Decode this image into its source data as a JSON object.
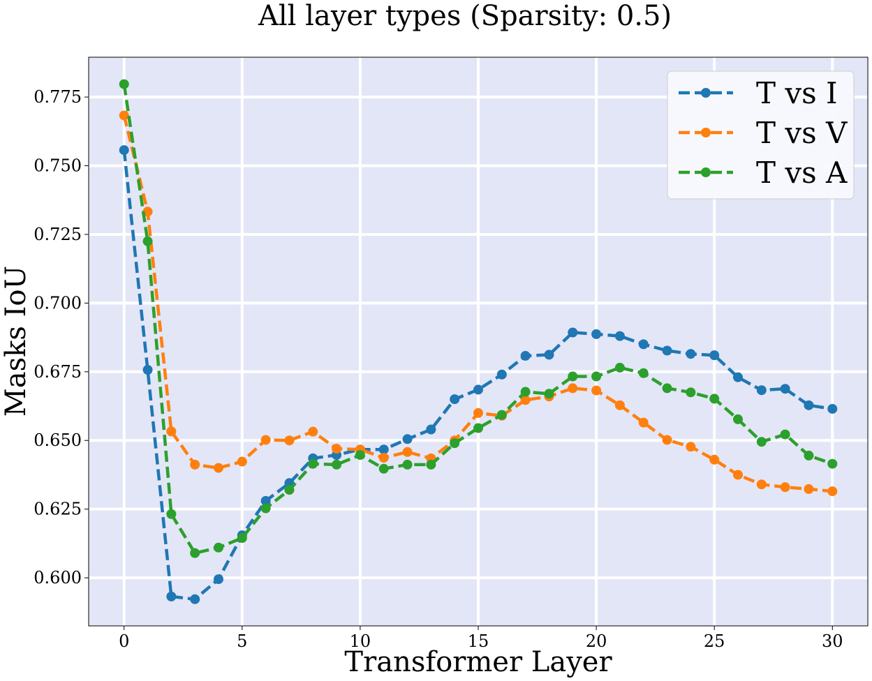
{
  "chart_data": {
    "type": "line",
    "title": "All layer types (Sparsity: 0.5)",
    "xlabel": "Transformer Layer",
    "ylabel": "Masks IoU",
    "xlim": [
      -1.5,
      31.5
    ],
    "ylim": [
      0.5825,
      0.7895
    ],
    "xticks": [
      0,
      5,
      10,
      15,
      20,
      25,
      30
    ],
    "yticks": [
      0.6,
      0.625,
      0.65,
      0.675,
      0.7,
      0.725,
      0.75,
      0.775
    ],
    "ytick_labels": [
      "0.600",
      "0.625",
      "0.650",
      "0.675",
      "0.700",
      "0.725",
      "0.750",
      "0.775"
    ],
    "grid": true,
    "background": "#e3e6f7",
    "legend_position": "top-right",
    "x": [
      0,
      1,
      2,
      3,
      4,
      5,
      6,
      7,
      8,
      9,
      10,
      11,
      12,
      13,
      14,
      15,
      16,
      17,
      18,
      19,
      20,
      21,
      22,
      23,
      24,
      25,
      26,
      27,
      28,
      29,
      30
    ],
    "series": [
      {
        "name": "T vs I",
        "color": "#1f77b4",
        "values": [
          0.7557,
          0.6757,
          0.5932,
          0.5922,
          0.5995,
          0.6155,
          0.628,
          0.6345,
          0.6435,
          0.6447,
          0.6467,
          0.6467,
          0.6505,
          0.654,
          0.665,
          0.6685,
          0.674,
          0.6808,
          0.6812,
          0.6893,
          0.6887,
          0.688,
          0.685,
          0.6827,
          0.6815,
          0.681,
          0.673,
          0.6683,
          0.6688,
          0.6628,
          0.6615
        ]
      },
      {
        "name": "T vs V",
        "color": "#ff7f0e",
        "values": [
          0.7683,
          0.7333,
          0.6533,
          0.6412,
          0.64,
          0.6423,
          0.6502,
          0.65,
          0.6532,
          0.647,
          0.6467,
          0.6437,
          0.6458,
          0.6435,
          0.65,
          0.66,
          0.659,
          0.6647,
          0.666,
          0.669,
          0.6682,
          0.6628,
          0.6565,
          0.6502,
          0.6477,
          0.643,
          0.6375,
          0.634,
          0.633,
          0.6323,
          0.6315
        ]
      },
      {
        "name": "T vs A",
        "color": "#2ca02c",
        "values": [
          0.7797,
          0.7225,
          0.6232,
          0.609,
          0.611,
          0.6145,
          0.6253,
          0.632,
          0.6415,
          0.6412,
          0.6447,
          0.6397,
          0.6412,
          0.6412,
          0.649,
          0.6545,
          0.6593,
          0.6677,
          0.667,
          0.6733,
          0.6733,
          0.6765,
          0.6745,
          0.669,
          0.6675,
          0.6652,
          0.6577,
          0.6495,
          0.6522,
          0.6445,
          0.6415
        ]
      }
    ]
  }
}
